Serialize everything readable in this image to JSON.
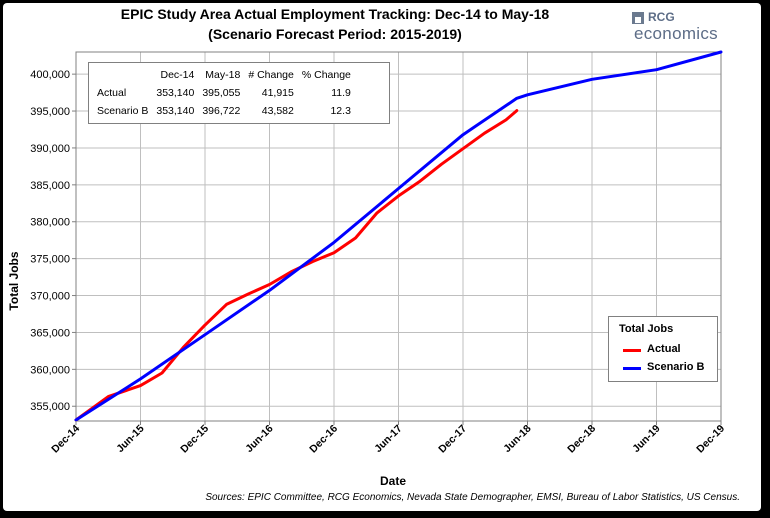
{
  "title_line1": "EPIC Study Area Actual Employment Tracking: Dec-14 to May-18",
  "title_line2": "(Scenario Forecast Period: 2015-2019)",
  "logo": {
    "top": "RCG",
    "bottom": "economics"
  },
  "summary_table": {
    "headers": [
      "",
      "Dec-14",
      "May-18",
      "# Change",
      "% Change"
    ],
    "rows": [
      [
        "Actual",
        "353,140",
        "395,055",
        "41,915",
        "11.9"
      ],
      [
        "Scenario B",
        "353,140",
        "396,722",
        "43,582",
        "12.3"
      ]
    ]
  },
  "sources": "Sources: EPIC Committee, RCG Economics, Nevada State Demographer, EMSI, Bureau of Labor Statistics, US Census.",
  "colors": {
    "actual": "#ff0000",
    "scenario": "#0000ff",
    "grid": "#bfbfbf"
  },
  "chart_data": {
    "type": "line",
    "xlabel": "Date",
    "ylabel": "Total Jobs",
    "x_ticks": [
      "Dec-14",
      "Jun-15",
      "Dec-15",
      "Jun-16",
      "Dec-16",
      "Jun-17",
      "Dec-17",
      "Jun-18",
      "Dec-18",
      "Jun-19",
      "Dec-19"
    ],
    "y_ticks": [
      "355,000",
      "360,000",
      "365,000",
      "370,000",
      "375,000",
      "380,000",
      "385,000",
      "390,000",
      "395,000",
      "400,000"
    ],
    "ylim": [
      353000,
      403000
    ],
    "xlim": [
      "Dec-14",
      "Dec-19"
    ],
    "grid": true,
    "legend": {
      "title": "Total Jobs",
      "position": "right"
    },
    "series": [
      {
        "name": "Actual",
        "color": "#ff0000",
        "points": [
          [
            "Dec-14",
            353140
          ],
          [
            "Mar-15",
            356300
          ],
          [
            "Jun-15",
            357800
          ],
          [
            "Aug-15",
            359500
          ],
          [
            "Oct-15",
            363000
          ],
          [
            "Dec-15",
            366000
          ],
          [
            "Feb-16",
            368800
          ],
          [
            "Apr-16",
            370200
          ],
          [
            "Jun-16",
            371500
          ],
          [
            "Aug-16",
            373200
          ],
          [
            "Oct-16",
            374600
          ],
          [
            "Dec-16",
            375800
          ],
          [
            "Feb-17",
            377800
          ],
          [
            "Apr-17",
            381200
          ],
          [
            "Jun-17",
            383500
          ],
          [
            "Aug-17",
            385500
          ],
          [
            "Oct-17",
            387800
          ],
          [
            "Dec-17",
            389900
          ],
          [
            "Feb-18",
            392000
          ],
          [
            "Apr-18",
            393800
          ],
          [
            "May-18",
            395055
          ]
        ]
      },
      {
        "name": "Scenario B",
        "color": "#0000ff",
        "points": [
          [
            "Dec-14",
            353140
          ],
          [
            "Jun-15",
            358700
          ],
          [
            "Dec-15",
            364700
          ],
          [
            "Jun-16",
            370700
          ],
          [
            "Dec-16",
            377200
          ],
          [
            "Jun-17",
            384500
          ],
          [
            "Dec-17",
            391800
          ],
          [
            "May-18",
            396722
          ],
          [
            "Jun-18",
            397200
          ],
          [
            "Dec-18",
            399300
          ],
          [
            "Jun-19",
            400600
          ],
          [
            "Dec-19",
            403000
          ]
        ]
      }
    ]
  }
}
